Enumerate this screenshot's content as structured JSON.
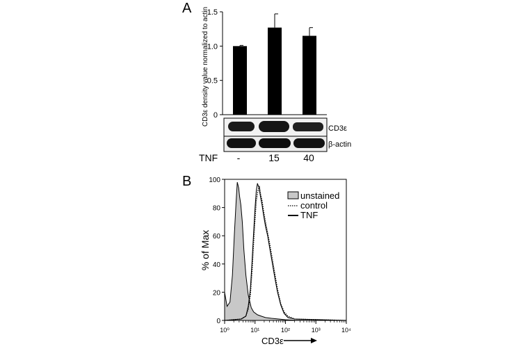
{
  "panel_a": {
    "label": "A",
    "ylabel": "CD3ε density value normalized to actin",
    "blot_labels": [
      "CD3ε",
      "β-actin"
    ],
    "row_label": "TNF",
    "lane_labels": [
      "-",
      "15",
      "40"
    ]
  },
  "panel_b": {
    "label": "B",
    "ylabel": "% of Max",
    "xlabel": "CD3ε",
    "legend": [
      "unstained",
      "control",
      "TNF"
    ]
  },
  "chart_data": [
    {
      "type": "bar",
      "categories": [
        "-",
        "15",
        "40"
      ],
      "values": [
        1.0,
        1.27,
        1.15
      ],
      "errors": [
        0.01,
        0.2,
        0.12
      ],
      "ylabel": "CD3ε density value normalized to actin",
      "ylim": [
        0,
        1.5
      ],
      "yticks": [
        0,
        0.5,
        1.0,
        1.5
      ],
      "ytick_labels": [
        "0",
        "0.5",
        "1.0",
        "1.5"
      ],
      "colors": {
        "bar": "#000000"
      }
    },
    {
      "type": "area",
      "xscale": "log",
      "xlim": [
        1,
        10000
      ],
      "ylim": [
        0,
        100
      ],
      "xticks": [
        1,
        10,
        100,
        1000,
        10000
      ],
      "xtick_labels": [
        "10⁰",
        "10¹",
        "10²",
        "10³",
        "10⁴"
      ],
      "yticks": [
        0,
        20,
        40,
        60,
        80,
        100
      ],
      "ytick_labels": [
        "0",
        "20",
        "40",
        "60",
        "80",
        "100"
      ],
      "xlabel": "CD3ε",
      "ylabel": "% of Max",
      "series": [
        {
          "name": "unstained",
          "style": "filled",
          "color": "#c8c8c8",
          "x": [
            1.0,
            1.2,
            1.5,
            1.8,
            2.1,
            2.4,
            2.6,
            2.9,
            3.1,
            3.4,
            3.8,
            4.3,
            5.0,
            6.0,
            7.5,
            9.0,
            12.0,
            16.0,
            22.0,
            35.0,
            60.0,
            100.0,
            200.0,
            1000.0,
            10000.0
          ],
          "y": [
            20,
            10,
            13,
            32,
            62,
            85,
            98,
            94,
            88,
            82,
            70,
            50,
            32,
            18,
            9,
            6,
            4,
            3,
            2,
            1.5,
            1,
            0.5,
            0.2,
            0,
            0
          ]
        },
        {
          "name": "control",
          "style": "dotted",
          "color": "#000000",
          "x": [
            1.0,
            3.5,
            5.0,
            6.0,
            7.0,
            8.0,
            9.0,
            10.0,
            11.0,
            12.5,
            14.0,
            15.0,
            17.0,
            19.0,
            22.0,
            26.0,
            30.0,
            36.0,
            45.0,
            55.0,
            70.0,
            90.0,
            120.0,
            200.0,
            10000.0
          ],
          "y": [
            0,
            1,
            3,
            8,
            18,
            35,
            55,
            72,
            85,
            92,
            95,
            90,
            85,
            78,
            70,
            62,
            55,
            45,
            33,
            22,
            12,
            6,
            3,
            1,
            0
          ]
        },
        {
          "name": "TNF",
          "style": "solid",
          "color": "#000000",
          "x": [
            1.0,
            3.5,
            5.0,
            6.0,
            7.0,
            8.0,
            9.0,
            10.0,
            11.0,
            12.0,
            13.5,
            15.0,
            17.0,
            19.0,
            22.0,
            26.0,
            30.0,
            36.0,
            45.0,
            55.0,
            70.0,
            90.0,
            120.0,
            200.0,
            10000.0
          ],
          "y": [
            0,
            1,
            3,
            10,
            22,
            42,
            62,
            80,
            92,
            97,
            94,
            88,
            82,
            75,
            67,
            60,
            52,
            42,
            30,
            20,
            11,
            5,
            2,
            1,
            0
          ]
        }
      ]
    }
  ]
}
